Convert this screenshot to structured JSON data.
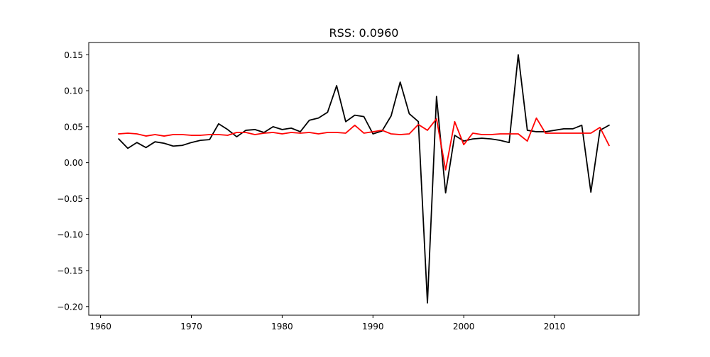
{
  "chart_data": {
    "type": "line",
    "title": "RSS: 0.0960",
    "xlabel": "",
    "ylabel": "",
    "xlim": [
      1958.7,
      2019.3
    ],
    "ylim": [
      -0.212,
      0.167
    ],
    "xticks": [
      1960,
      1970,
      1980,
      1990,
      2000,
      2010
    ],
    "xtick_labels": [
      "1960",
      "1970",
      "1980",
      "1990",
      "2000",
      "2010"
    ],
    "yticks": [
      -0.2,
      -0.15,
      -0.1,
      -0.05,
      0.0,
      0.05,
      0.1,
      0.15
    ],
    "ytick_labels": [
      "−0.20",
      "−0.15",
      "−0.10",
      "−0.05",
      "0.00",
      "0.05",
      "0.10",
      "0.15"
    ],
    "grid": false,
    "legend": "none",
    "x": [
      1962,
      1963,
      1964,
      1965,
      1966,
      1967,
      1968,
      1969,
      1970,
      1971,
      1972,
      1973,
      1974,
      1975,
      1976,
      1977,
      1978,
      1979,
      1980,
      1981,
      1982,
      1983,
      1984,
      1985,
      1986,
      1987,
      1988,
      1989,
      1990,
      1991,
      1992,
      1993,
      1994,
      1995,
      1996,
      1997,
      1998,
      1999,
      2000,
      2001,
      2002,
      2003,
      2004,
      2005,
      2006,
      2007,
      2008,
      2009,
      2010,
      2011,
      2012,
      2013,
      2014,
      2015,
      2016
    ],
    "series": [
      {
        "color": "#000000",
        "values": [
          0.033,
          0.02,
          0.028,
          0.021,
          0.029,
          0.027,
          0.023,
          0.024,
          0.028,
          0.031,
          0.032,
          0.054,
          0.046,
          0.036,
          0.045,
          0.046,
          0.042,
          0.05,
          0.046,
          0.048,
          0.043,
          0.059,
          0.062,
          0.07,
          0.107,
          0.057,
          0.066,
          0.064,
          0.04,
          0.044,
          0.065,
          0.112,
          0.068,
          0.057,
          -0.195,
          0.092,
          -0.042,
          0.038,
          0.03,
          0.033,
          0.034,
          0.033,
          0.031,
          0.028,
          0.15,
          0.045,
          0.043,
          0.043,
          0.045,
          0.047,
          0.047,
          0.052,
          -0.041,
          0.045,
          0.052
        ]
      },
      {
        "color": "#ff0000",
        "values": [
          0.04,
          0.041,
          0.04,
          0.037,
          0.039,
          0.037,
          0.039,
          0.039,
          0.038,
          0.038,
          0.039,
          0.039,
          0.038,
          0.042,
          0.042,
          0.039,
          0.041,
          0.042,
          0.04,
          0.042,
          0.041,
          0.042,
          0.04,
          0.042,
          0.042,
          0.041,
          0.052,
          0.041,
          0.043,
          0.045,
          0.04,
          0.039,
          0.04,
          0.053,
          0.045,
          0.061,
          -0.01,
          0.057,
          0.025,
          0.041,
          0.039,
          0.039,
          0.04,
          0.04,
          0.04,
          0.03,
          0.062,
          0.041,
          0.041,
          0.041,
          0.041,
          0.041,
          0.041,
          0.049,
          0.024
        ]
      }
    ]
  }
}
